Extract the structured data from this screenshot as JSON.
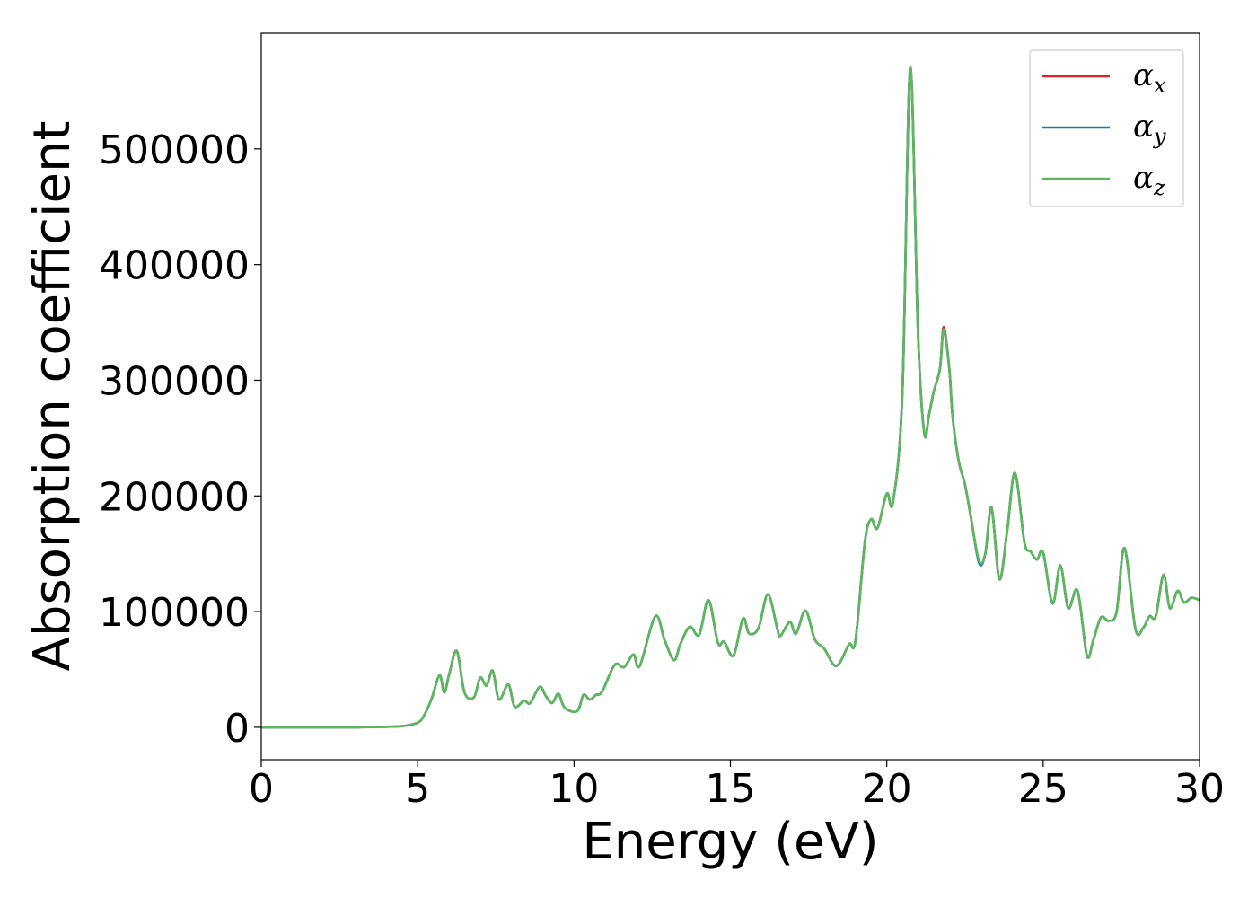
{
  "chart_data": {
    "type": "line",
    "title": "",
    "xlabel": "Energy (eV)",
    "ylabel": "Absorption coefficient",
    "xlim": [
      0,
      30
    ],
    "ylim": [
      -28000,
      600000
    ],
    "xticks": [
      0,
      5,
      10,
      15,
      20,
      25,
      30
    ],
    "yticks": [
      0,
      100000,
      200000,
      300000,
      400000,
      500000
    ],
    "grid": false,
    "legend_position": "top-right",
    "series": [
      {
        "name": "αx",
        "symbol": "α",
        "subscript": "x",
        "color": "#d62728",
        "x": [
          0,
          1,
          2,
          3,
          4,
          4.5,
          5,
          5.2,
          5.45,
          5.7,
          5.85,
          6.0,
          6.25,
          6.5,
          6.8,
          7.0,
          7.2,
          7.4,
          7.6,
          7.9,
          8.1,
          8.4,
          8.6,
          8.9,
          9.1,
          9.3,
          9.5,
          9.7,
          10.1,
          10.3,
          10.5,
          10.7,
          10.9,
          11.3,
          11.6,
          11.9,
          12.1,
          12.6,
          12.9,
          13.2,
          13.4,
          13.7,
          14.0,
          14.3,
          14.6,
          14.8,
          15.1,
          15.4,
          15.6,
          15.9,
          16.2,
          16.5,
          16.6,
          16.9,
          17.1,
          17.4,
          17.7,
          18.0,
          18.3,
          18.5,
          18.8,
          19.0,
          19.3,
          19.5,
          19.7,
          20.0,
          20.2,
          20.5,
          20.75,
          21.0,
          21.2,
          21.35,
          21.5,
          21.7,
          21.82,
          22.0,
          22.1,
          22.3,
          22.5,
          22.7,
          22.95,
          23.15,
          23.35,
          23.6,
          23.85,
          24.1,
          24.4,
          24.6,
          24.8,
          25.0,
          25.3,
          25.55,
          25.8,
          26.1,
          26.4,
          26.6,
          26.85,
          27.1,
          27.35,
          27.6,
          27.95,
          28.2,
          28.4,
          28.6,
          28.85,
          29.05,
          29.3,
          29.5,
          29.75,
          30.0
        ],
        "values": [
          0,
          0,
          0,
          0,
          500,
          1000,
          4000,
          10000,
          25000,
          45000,
          30000,
          45000,
          66000,
          30000,
          26000,
          43000,
          36000,
          49000,
          24000,
          37000,
          18000,
          23000,
          21000,
          35000,
          27000,
          21000,
          29000,
          17000,
          14000,
          28000,
          24000,
          28000,
          31000,
          54000,
          52000,
          63000,
          53000,
          96000,
          75000,
          58000,
          72000,
          87000,
          80000,
          110000,
          73000,
          74000,
          62000,
          94000,
          81000,
          86000,
          115000,
          85000,
          79000,
          91000,
          81000,
          101000,
          76000,
          68000,
          54000,
          56000,
          72000,
          75000,
          160000,
          180000,
          172000,
          202000,
          195000,
          290000,
          570000,
          340000,
          254000,
          270000,
          290000,
          310000,
          346000,
          310000,
          270000,
          230000,
          210000,
          180000,
          143000,
          150000,
          190000,
          128000,
          170000,
          220000,
          160000,
          152000,
          145000,
          151000,
          107000,
          140000,
          103000,
          118000,
          62000,
          75000,
          95000,
          92000,
          100000,
          155000,
          85000,
          86000,
          96000,
          96000,
          132000,
          103000,
          118000,
          108000,
          112000,
          110000
        ]
      },
      {
        "name": "αy",
        "symbol": "α",
        "subscript": "y",
        "color": "#1f77b4",
        "x": [
          0,
          1,
          2,
          3,
          4,
          4.5,
          5,
          5.2,
          5.45,
          5.7,
          5.85,
          6.0,
          6.25,
          6.5,
          6.8,
          7.0,
          7.2,
          7.4,
          7.6,
          7.9,
          8.1,
          8.4,
          8.6,
          8.9,
          9.1,
          9.3,
          9.5,
          9.7,
          10.1,
          10.3,
          10.5,
          10.7,
          10.9,
          11.3,
          11.6,
          11.9,
          12.1,
          12.6,
          12.9,
          13.2,
          13.4,
          13.7,
          14.0,
          14.3,
          14.6,
          14.8,
          15.1,
          15.4,
          15.6,
          15.9,
          16.2,
          16.5,
          16.6,
          16.9,
          17.1,
          17.4,
          17.7,
          18.0,
          18.3,
          18.5,
          18.8,
          19.0,
          19.3,
          19.5,
          19.7,
          20.0,
          20.2,
          20.5,
          20.75,
          21.0,
          21.2,
          21.35,
          21.5,
          21.7,
          21.82,
          22.0,
          22.1,
          22.3,
          22.5,
          22.7,
          22.95,
          23.15,
          23.35,
          23.6,
          23.85,
          24.1,
          24.4,
          24.6,
          24.8,
          25.0,
          25.3,
          25.55,
          25.8,
          26.1,
          26.4,
          26.6,
          26.85,
          27.1,
          27.35,
          27.6,
          27.95,
          28.2,
          28.4,
          28.6,
          28.85,
          29.05,
          29.3,
          29.5,
          29.75,
          30.0
        ],
        "values": [
          0,
          0,
          0,
          0,
          500,
          1000,
          4000,
          10000,
          25000,
          45000,
          30000,
          45000,
          66000,
          30000,
          26000,
          43000,
          36000,
          49000,
          24000,
          37000,
          18000,
          23000,
          21000,
          35000,
          27000,
          21000,
          29000,
          17000,
          14000,
          28000,
          24000,
          28000,
          31000,
          54000,
          52000,
          63000,
          53000,
          96000,
          75000,
          58000,
          72000,
          87000,
          80000,
          110000,
          73000,
          74000,
          62000,
          94000,
          81000,
          86000,
          115000,
          85000,
          79000,
          91000,
          81000,
          101000,
          76000,
          68000,
          54000,
          56000,
          72000,
          75000,
          160000,
          180000,
          172000,
          202000,
          195000,
          290000,
          570000,
          340000,
          254000,
          270000,
          290000,
          310000,
          343000,
          310000,
          270000,
          230000,
          210000,
          180000,
          142000,
          150000,
          190000,
          128000,
          170000,
          220000,
          160000,
          152000,
          145000,
          151000,
          107000,
          140000,
          103000,
          118000,
          62000,
          75000,
          95000,
          92000,
          100000,
          155000,
          85000,
          86000,
          96000,
          96000,
          132000,
          103000,
          118000,
          108000,
          112000,
          110000
        ]
      },
      {
        "name": "αz",
        "symbol": "α",
        "subscript": "z",
        "color": "#5cb85c",
        "x": [
          0,
          1,
          2,
          3,
          4,
          4.5,
          5,
          5.2,
          5.45,
          5.7,
          5.85,
          6.0,
          6.25,
          6.5,
          6.8,
          7.0,
          7.2,
          7.4,
          7.6,
          7.9,
          8.1,
          8.4,
          8.6,
          8.9,
          9.1,
          9.3,
          9.5,
          9.7,
          10.1,
          10.3,
          10.5,
          10.7,
          10.9,
          11.3,
          11.6,
          11.9,
          12.1,
          12.6,
          12.9,
          13.2,
          13.4,
          13.7,
          14.0,
          14.3,
          14.6,
          14.8,
          15.1,
          15.4,
          15.6,
          15.9,
          16.2,
          16.5,
          16.6,
          16.9,
          17.1,
          17.4,
          17.7,
          18.0,
          18.3,
          18.5,
          18.8,
          19.0,
          19.3,
          19.5,
          19.7,
          20.0,
          20.2,
          20.5,
          20.75,
          21.0,
          21.2,
          21.35,
          21.5,
          21.7,
          21.82,
          22.0,
          22.1,
          22.3,
          22.5,
          22.7,
          22.95,
          23.15,
          23.35,
          23.6,
          23.85,
          24.1,
          24.4,
          24.6,
          24.8,
          25.0,
          25.3,
          25.55,
          25.8,
          26.1,
          26.4,
          26.6,
          26.85,
          27.1,
          27.35,
          27.6,
          27.95,
          28.2,
          28.4,
          28.6,
          28.85,
          29.05,
          29.3,
          29.5,
          29.75,
          30.0
        ],
        "values": [
          0,
          0,
          0,
          0,
          500,
          1000,
          4000,
          10000,
          25000,
          45000,
          30000,
          45000,
          66000,
          30000,
          26000,
          43000,
          36000,
          49000,
          24000,
          37000,
          18000,
          23000,
          21000,
          35000,
          27000,
          21000,
          29000,
          17000,
          14000,
          28000,
          24000,
          28000,
          31000,
          54000,
          52000,
          63000,
          53000,
          96000,
          75000,
          58000,
          72000,
          87000,
          80000,
          110000,
          73000,
          74000,
          62000,
          94000,
          81000,
          86000,
          115000,
          85000,
          79000,
          91000,
          81000,
          101000,
          76000,
          68000,
          54000,
          56000,
          72000,
          75000,
          160000,
          180000,
          172000,
          202000,
          195000,
          290000,
          570000,
          340000,
          254000,
          270000,
          290000,
          310000,
          344000,
          310000,
          270000,
          230000,
          210000,
          180000,
          144000,
          150000,
          190000,
          128000,
          170000,
          220000,
          160000,
          152000,
          145000,
          151000,
          107000,
          140000,
          103000,
          118000,
          62000,
          75000,
          95000,
          92000,
          100000,
          155000,
          85000,
          86000,
          96000,
          96000,
          132000,
          103000,
          118000,
          108000,
          112000,
          110000
        ]
      }
    ]
  }
}
